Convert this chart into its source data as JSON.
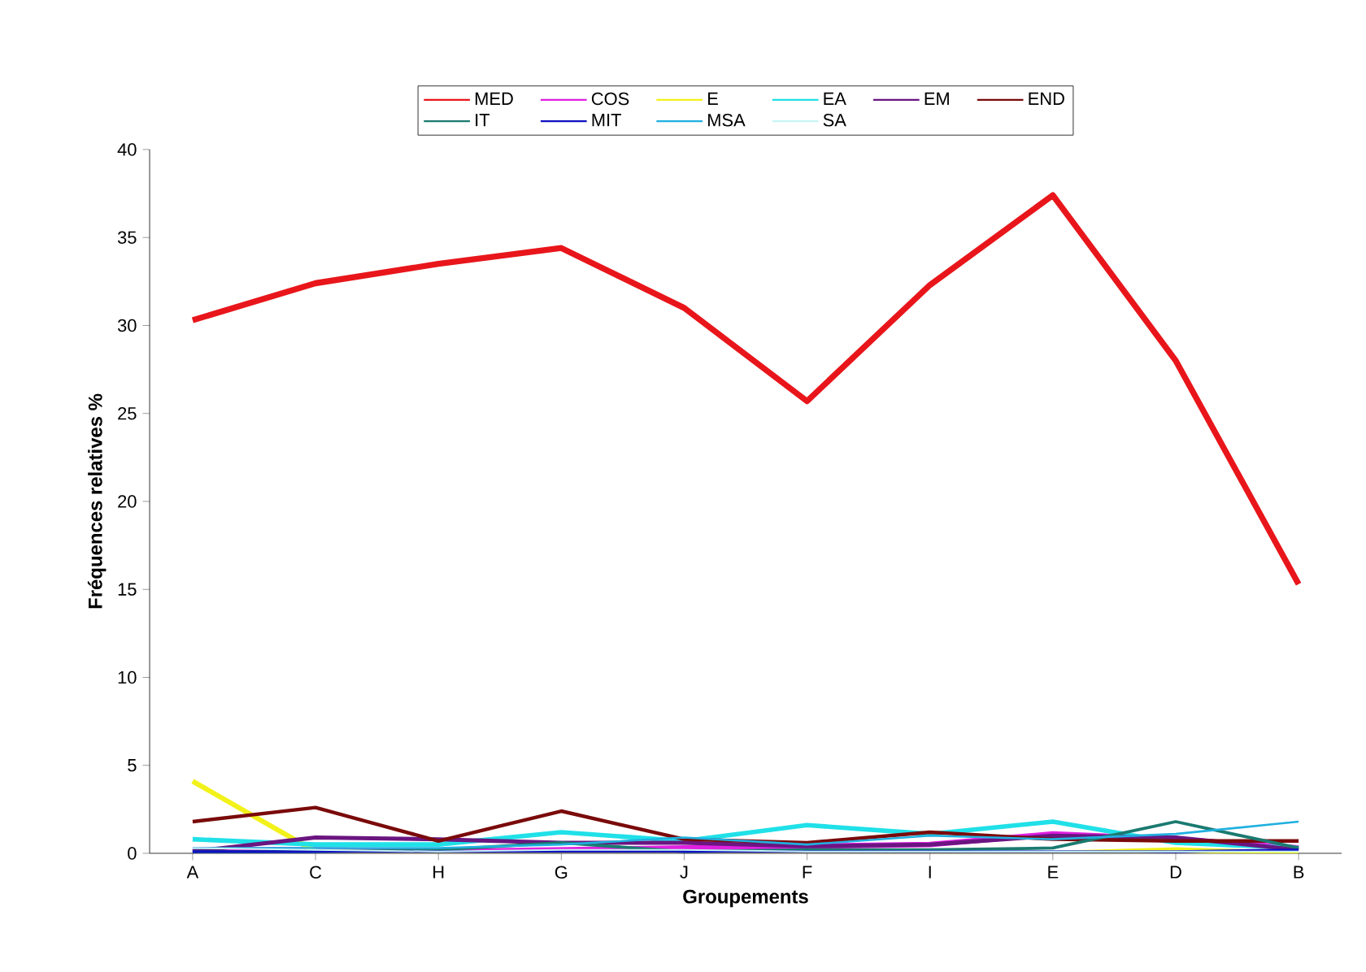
{
  "chart_data": {
    "type": "line",
    "xlabel": "Groupements",
    "ylabel": "Fréquences relatives %",
    "categories": [
      "A",
      "C",
      "H",
      "G",
      "J",
      "F",
      "I",
      "E",
      "D",
      "B"
    ],
    "ylim": [
      0,
      40
    ],
    "yticks": [
      0,
      5,
      10,
      15,
      20,
      25,
      30,
      35,
      40
    ],
    "grid": false,
    "legend": "top",
    "marker": "none",
    "line_style": "solid",
    "series": [
      {
        "name": "MED",
        "color": "#e8161b",
        "values": [
          30.3,
          32.4,
          33.5,
          34.4,
          31.0,
          25.7,
          32.3,
          37.4,
          28.0,
          15.3
        ]
      },
      {
        "name": "COS",
        "color": "#e020e0",
        "values": [
          0.2,
          0.2,
          0.1,
          0.2,
          0.3,
          0.4,
          0.5,
          1.1,
          0.8,
          0.3
        ]
      },
      {
        "name": "E",
        "color": "#f2f21a",
        "values": [
          4.1,
          0.1,
          0,
          0,
          0,
          0.1,
          0,
          0,
          0.2,
          0
        ]
      },
      {
        "name": "EA",
        "color": "#20e0e8",
        "values": [
          0.8,
          0.5,
          0.5,
          1.2,
          0.7,
          1.6,
          1.1,
          1.8,
          0.6,
          0.3
        ]
      },
      {
        "name": "EM",
        "color": "#6a1580",
        "values": [
          0.1,
          0.9,
          0.8,
          0.6,
          0.6,
          0.4,
          0.5,
          1.0,
          0.9,
          0.2
        ]
      },
      {
        "name": "END",
        "color": "#7a0a0a",
        "values": [
          1.8,
          2.6,
          0.7,
          2.4,
          0.8,
          0.6,
          1.2,
          0.8,
          0.7,
          0.7
        ]
      },
      {
        "name": "IT",
        "color": "#1a7a70",
        "values": [
          0.1,
          0.1,
          0.2,
          0.6,
          0.1,
          0.2,
          0.2,
          0.3,
          1.8,
          0.3
        ]
      },
      {
        "name": "MIT",
        "color": "#1010c0",
        "values": [
          0.1,
          0.1,
          0.1,
          0.1,
          0.1,
          0.1,
          0.1,
          0.1,
          0.1,
          0.2
        ]
      },
      {
        "name": "MSA",
        "color": "#20b0e0",
        "values": [
          0.3,
          0.3,
          0.3,
          0.5,
          0.9,
          0.5,
          1.0,
          0.8,
          1.1,
          1.8
        ]
      },
      {
        "name": "SA",
        "color": "#c8f4f4",
        "values": [
          0.3,
          0.2,
          0.1,
          0.2,
          0.2,
          0.1,
          0.1,
          0.1,
          0.1,
          0.1
        ]
      }
    ]
  }
}
